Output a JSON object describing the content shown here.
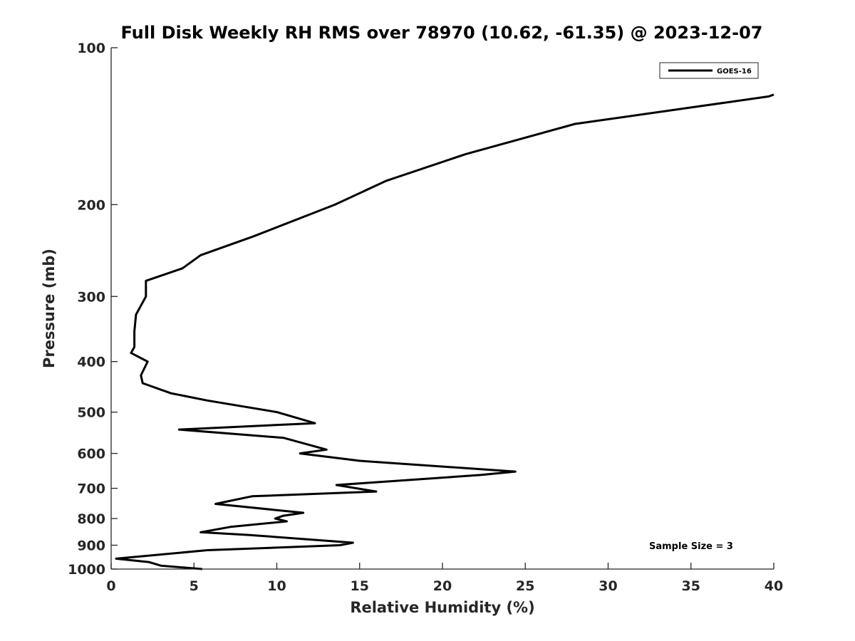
{
  "chart_data": {
    "type": "line",
    "title": "Full Disk Weekly RH RMS over 78970 (10.62, -61.35) @ 2023-12-07",
    "xlabel": "Relative Humidity (%)",
    "ylabel": "Pressure (mb)",
    "xlim": [
      0,
      40
    ],
    "ylim": [
      1000,
      100
    ],
    "yscale": "log",
    "x_ticks": [
      0,
      5,
      10,
      15,
      20,
      25,
      30,
      35,
      40
    ],
    "y_ticks": [
      100,
      200,
      300,
      400,
      500,
      600,
      700,
      800,
      900,
      1000
    ],
    "grid": false,
    "legend_position": "top-right",
    "annotation": "Sample Size = 3",
    "series": [
      {
        "name": "GOES-16",
        "color": "#000000",
        "points": [
          [
            5.5,
            1000
          ],
          [
            3.0,
            985
          ],
          [
            2.3,
            970
          ],
          [
            0.3,
            955
          ],
          [
            5.8,
            920
          ],
          [
            13.8,
            900
          ],
          [
            14.6,
            890
          ],
          [
            8.3,
            860
          ],
          [
            5.4,
            850
          ],
          [
            7.2,
            830
          ],
          [
            10.6,
            810
          ],
          [
            9.9,
            800
          ],
          [
            10.4,
            790
          ],
          [
            11.6,
            780
          ],
          [
            6.3,
            750
          ],
          [
            8.5,
            725
          ],
          [
            16.0,
            710
          ],
          [
            13.6,
            690
          ],
          [
            22.3,
            660
          ],
          [
            24.4,
            650
          ],
          [
            15.0,
            620
          ],
          [
            11.4,
            600
          ],
          [
            13.0,
            590
          ],
          [
            10.4,
            560
          ],
          [
            4.1,
            540
          ],
          [
            12.3,
            525
          ],
          [
            10.0,
            500
          ],
          [
            5.8,
            475
          ],
          [
            3.6,
            460
          ],
          [
            1.9,
            440
          ],
          [
            1.8,
            425
          ],
          [
            2.2,
            400
          ],
          [
            1.2,
            385
          ],
          [
            1.4,
            375
          ],
          [
            1.4,
            350
          ],
          [
            1.5,
            325
          ],
          [
            2.1,
            300
          ],
          [
            2.1,
            280
          ],
          [
            4.3,
            265
          ],
          [
            5.4,
            250
          ],
          [
            8.6,
            230
          ],
          [
            13.5,
            200
          ],
          [
            16.6,
            180
          ],
          [
            21.4,
            160
          ],
          [
            28.0,
            140
          ],
          [
            39.7,
            124
          ],
          [
            40.0,
            123
          ]
        ]
      }
    ]
  }
}
